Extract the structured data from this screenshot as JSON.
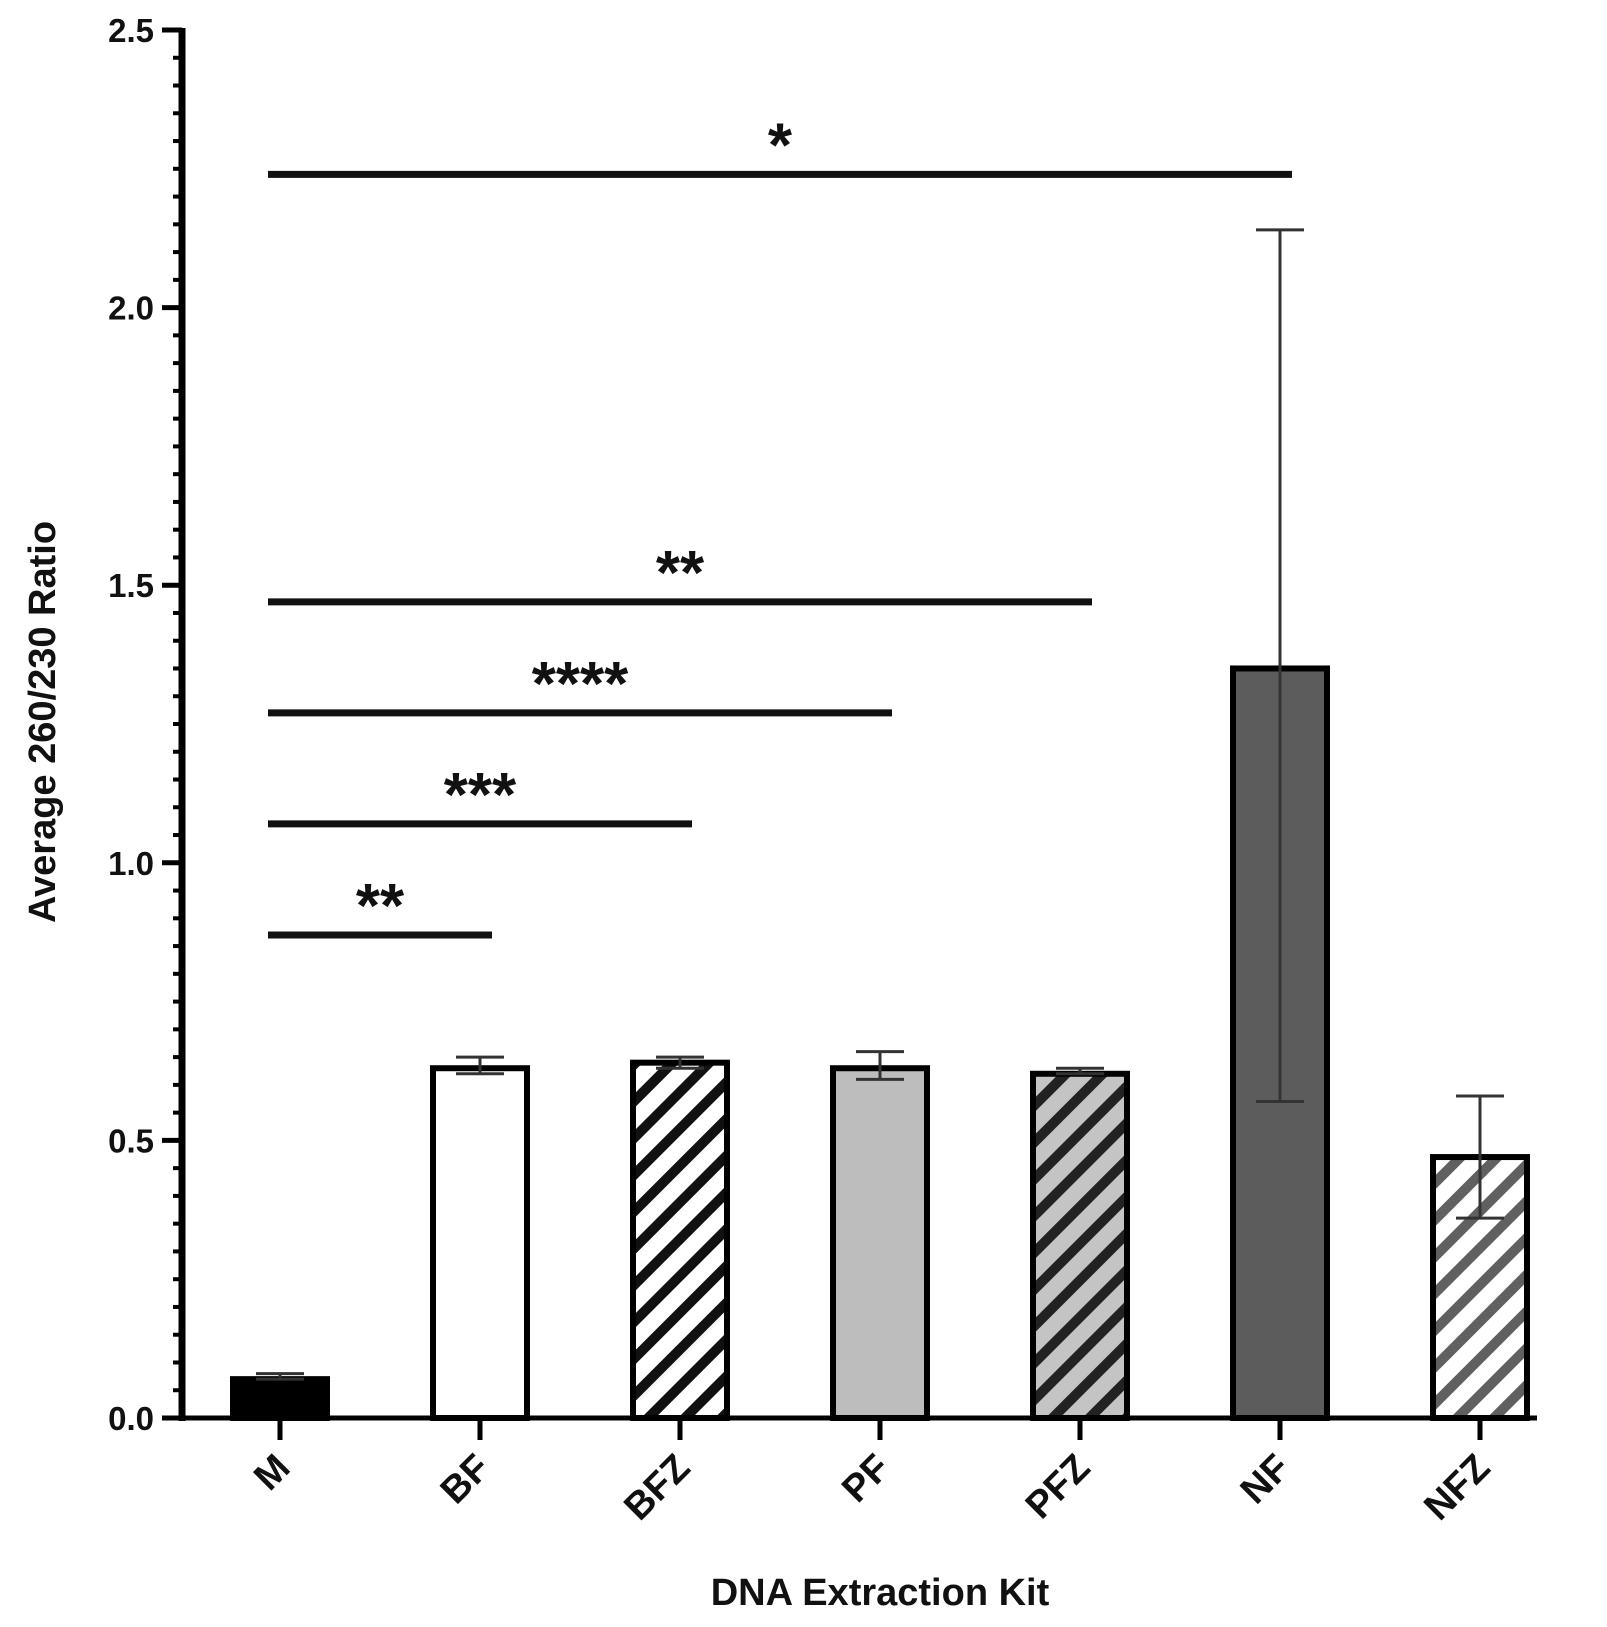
{
  "chart_data": {
    "type": "bar",
    "title": "",
    "xlabel": "DNA Extraction Kit",
    "ylabel": "Average 260/230 Ratio",
    "ylim": [
      0,
      2.5
    ],
    "y_ticks": [
      "0.0",
      "0.5",
      "1.0",
      "1.5",
      "2.0",
      "2.5"
    ],
    "grid": false,
    "categories": [
      "M",
      "BF",
      "BFZ",
      "PF",
      "PFZ",
      "NF",
      "NFZ"
    ],
    "values": [
      0.07,
      0.63,
      0.64,
      0.63,
      0.62,
      1.35,
      0.47
    ],
    "error_low": [
      0.07,
      0.62,
      0.63,
      0.61,
      0.62,
      0.57,
      0.36
    ],
    "error_high": [
      0.08,
      0.65,
      0.65,
      0.66,
      0.63,
      2.14,
      0.58
    ],
    "bar_styles": [
      {
        "fill": "#000000",
        "hatch": "none",
        "hatch_color": ""
      },
      {
        "fill": "#ffffff",
        "hatch": "none",
        "hatch_color": ""
      },
      {
        "fill": "#ffffff",
        "hatch": "diagonal",
        "hatch_color": "#111111"
      },
      {
        "fill": "#bdbdbd",
        "hatch": "none",
        "hatch_color": ""
      },
      {
        "fill": "#c4c4c4",
        "hatch": "diagonal",
        "hatch_color": "#222222"
      },
      {
        "fill": "#5c5c5c",
        "hatch": "none",
        "hatch_color": ""
      },
      {
        "fill": "#ffffff",
        "hatch": "diagonal",
        "hatch_color": "#606060"
      }
    ],
    "significance": [
      {
        "from": "M",
        "to": "BF",
        "y": 0.87,
        "label": "**"
      },
      {
        "from": "M",
        "to": "BFZ",
        "y": 1.07,
        "label": "***"
      },
      {
        "from": "M",
        "to": "PF",
        "y": 1.27,
        "label": "****"
      },
      {
        "from": "M",
        "to": "PFZ",
        "y": 1.47,
        "label": "**"
      },
      {
        "from": "M",
        "to": "NF",
        "y": 2.24,
        "label": "*"
      }
    ]
  }
}
